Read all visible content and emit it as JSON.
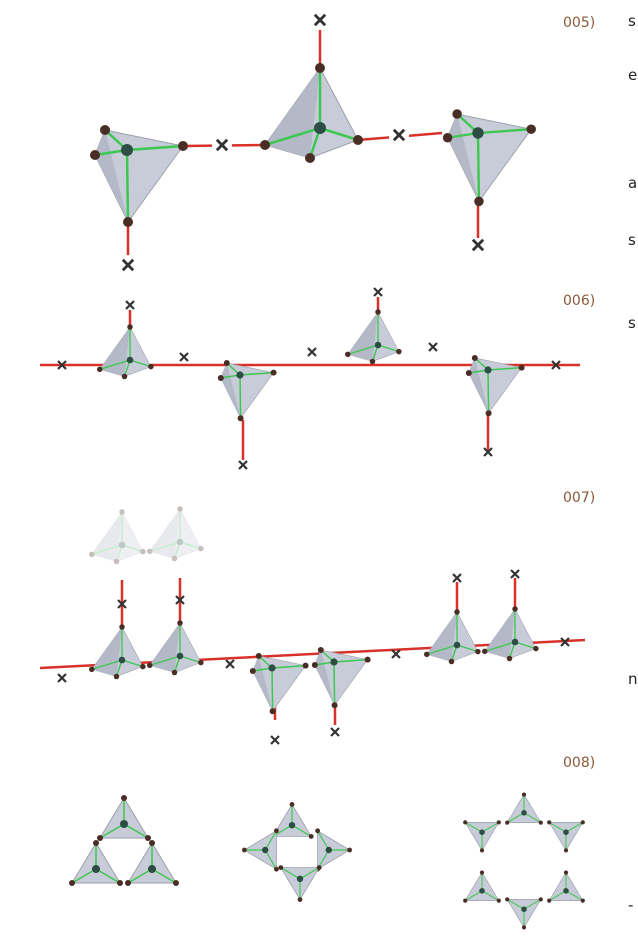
{
  "labels": [
    "005)",
    "006)",
    "007)",
    "008)"
  ],
  "margin_fragments": [
    "s",
    "e",
    "a",
    "s",
    "s",
    "n",
    "-"
  ]
}
